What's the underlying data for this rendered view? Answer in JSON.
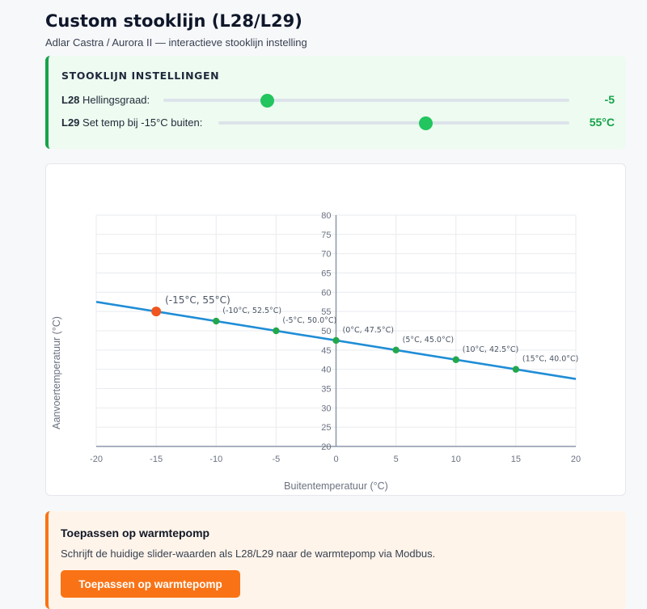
{
  "page": {
    "title": "Custom stooklijn (L28/L29)",
    "subtitle": "Adlar Castra / Aurora II — interactieve stooklijn instelling"
  },
  "settings": {
    "heading": "STOOKLIJN INSTELLINGEN",
    "l28": {
      "code": "L28",
      "label": "Hellingsgraad:",
      "value_text": "-5",
      "fraction": 0.255
    },
    "l29": {
      "code": "L29",
      "label": "Set temp bij -15°C buiten:",
      "value_text": "55°C",
      "fraction": 0.59
    },
    "accent_color": "#16a34a"
  },
  "chart_data": {
    "type": "line",
    "xlabel": "Buitentemperatuur (°C)",
    "ylabel": "Aanvoertemperatuur (°C)",
    "xlim": [
      -20,
      20
    ],
    "ylim": [
      20,
      80
    ],
    "x_ticks": [
      -20,
      -15,
      -10,
      -5,
      0,
      5,
      10,
      15,
      20
    ],
    "y_ticks": [
      20,
      25,
      30,
      35,
      40,
      45,
      50,
      55,
      60,
      65,
      70,
      75,
      80
    ],
    "line": {
      "x": [
        -20,
        20
      ],
      "y": [
        57.5,
        37.5
      ],
      "color": "#1f8dd6"
    },
    "points": [
      {
        "x": -10,
        "y": 52.5,
        "label": "(-10°C, 52.5°C)"
      },
      {
        "x": -5,
        "y": 50.0,
        "label": "(-5°C, 50.0°C)"
      },
      {
        "x": 0,
        "y": 47.5,
        "label": "(0°C, 47.5°C)"
      },
      {
        "x": 5,
        "y": 45.0,
        "label": "(5°C, 45.0°C)"
      },
      {
        "x": 10,
        "y": 42.5,
        "label": "(10°C, 42.5°C)"
      },
      {
        "x": 15,
        "y": 40.0,
        "label": "(15°C, 40.0°C)"
      }
    ],
    "point_color": "#22a84a",
    "highlight": {
      "x": -15,
      "y": 55,
      "label": "(-15°C, 55°C)",
      "color": "#f0551f"
    },
    "grid": true
  },
  "apply": {
    "title": "Toepassen op warmtepomp",
    "description": "Schrijft de huidige slider-waarden als L28/L29 naar de warmtepomp via Modbus.",
    "button_label": "Toepassen op warmtepomp",
    "accent_color": "#f97316"
  }
}
